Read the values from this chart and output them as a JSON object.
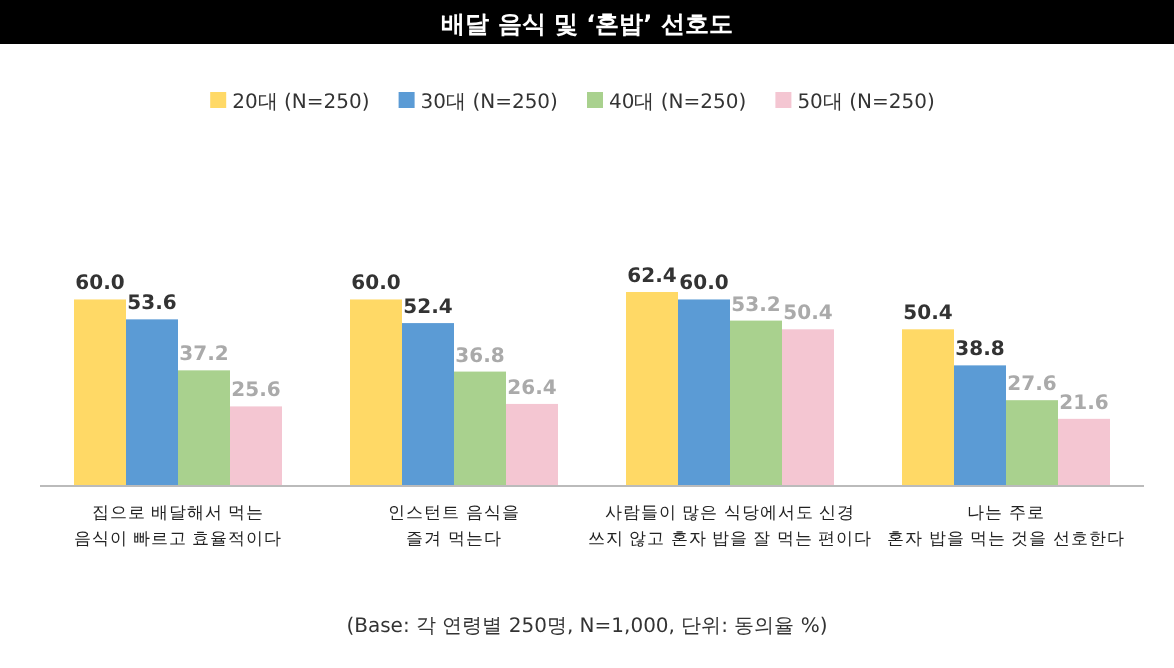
{
  "chart_data": {
    "type": "bar",
    "title": "배달 음식 및 ‘혼밥’ 선호도",
    "categories": [
      "집으로 배달해서 먹는\n음식이 빠르고 효율적이다",
      "인스턴트 음식을\n즐겨 먹는다",
      "사람들이 많은 식당에서도 신경\n쓰지 않고 혼자 밥을 잘 먹는 편이다",
      "나는 주로\n혼자 밥을 먹는 것을 선호한다"
    ],
    "series": [
      {
        "name": "20대 (N=250)",
        "color": "#ffd966",
        "values": [
          60.0,
          60.0,
          62.4,
          50.4
        ],
        "value_labels": [
          "60.0",
          "60.0",
          "62.4",
          "50.4"
        ]
      },
      {
        "name": "30대 (N=250)",
        "color": "#5b9bd5",
        "values": [
          53.6,
          52.4,
          60.0,
          38.8
        ],
        "value_labels": [
          "53.6",
          "52.4",
          "60.0",
          "38.8"
        ]
      },
      {
        "name": "40대 (N=250)",
        "color": "#a9d18e",
        "values": [
          37.2,
          36.8,
          53.2,
          27.6
        ],
        "value_labels": [
          "37.2",
          "36.8",
          "53.2",
          "27.6"
        ]
      },
      {
        "name": "50대 (N=250)",
        "color": "#f4c6d2",
        "values": [
          25.6,
          26.4,
          50.4,
          21.6
        ],
        "value_labels": [
          "25.6",
          "26.4",
          "50.4",
          "21.6"
        ]
      }
    ],
    "legend": "top",
    "annotations": [
      "(Base: 각 연령별 250명, N=1,000, 단위: 동의율 %)"
    ]
  }
}
